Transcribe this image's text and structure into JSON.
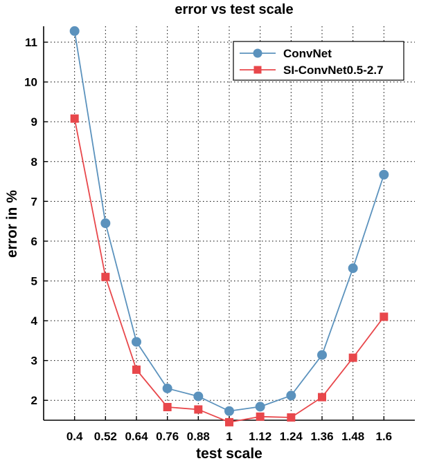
{
  "chart_data": {
    "type": "line",
    "title": "error vs test scale",
    "xlabel": "test scale",
    "ylabel": "error in %",
    "categories": [
      "0.4",
      "0.52",
      "0.64",
      "0.76",
      "0.88",
      "1",
      "1.12",
      "1.24",
      "1.36",
      "1.48",
      "1.6"
    ],
    "x": [
      0.4,
      0.52,
      0.64,
      0.76,
      0.88,
      1.0,
      1.12,
      1.24,
      1.36,
      1.48,
      1.6
    ],
    "xlim": [
      0.28,
      1.72
    ],
    "ylim": [
      1.5,
      11.4
    ],
    "yticks": [
      2,
      3,
      4,
      5,
      6,
      7,
      8,
      9,
      10,
      11
    ],
    "grid": true,
    "legend_position": "top-right",
    "series": [
      {
        "name": "ConvNet",
        "color": "#5b92bd",
        "marker": "circle",
        "values": [
          11.28,
          6.45,
          3.47,
          2.3,
          2.1,
          1.73,
          1.84,
          2.12,
          3.14,
          5.32,
          7.67
        ]
      },
      {
        "name": "SI-ConvNet0.5-2.7",
        "color": "#e8474b",
        "marker": "square",
        "values": [
          9.08,
          5.1,
          2.77,
          1.83,
          1.77,
          1.45,
          1.59,
          1.57,
          2.08,
          3.07,
          4.1
        ]
      }
    ]
  }
}
